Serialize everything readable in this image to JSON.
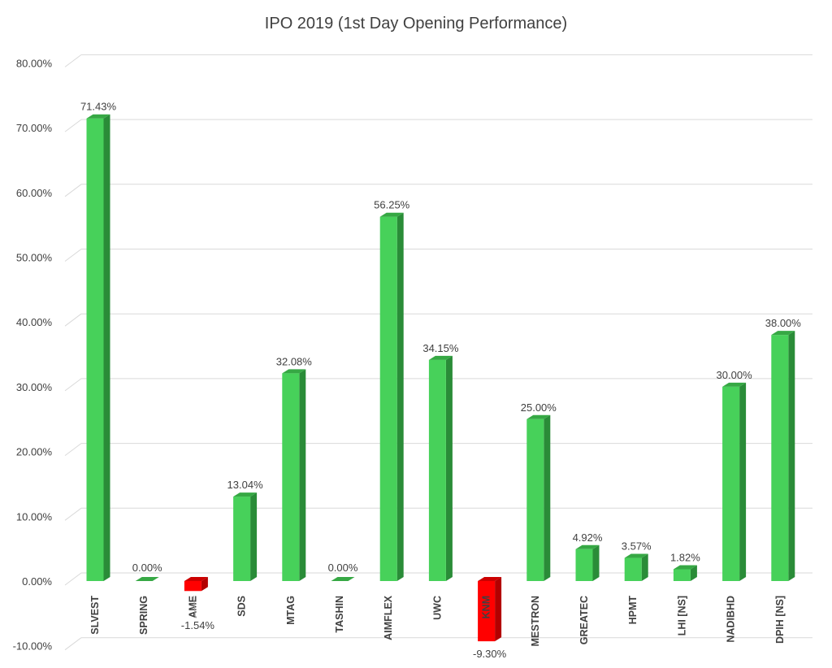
{
  "chart_data": {
    "type": "bar",
    "title": "IPO 2019 (1st Day Opening Performance)",
    "xlabel": "",
    "ylabel": "",
    "ylim": [
      -10,
      80
    ],
    "y_ticks": [
      "-10.00%",
      "0.00%",
      "10.00%",
      "20.00%",
      "30.00%",
      "40.00%",
      "50.00%",
      "60.00%",
      "70.00%",
      "80.00%"
    ],
    "categories": [
      "SLVEST",
      "SPRING",
      "AME",
      "SDS",
      "MTAG",
      "TASHIN",
      "AIMFLEX",
      "UWC",
      "KNM",
      "MESTRON",
      "GREATEC",
      "HPMT",
      "LHI [NS]",
      "NADIBHD",
      "DPIH [NS]"
    ],
    "values": [
      71.43,
      0.0,
      -1.54,
      13.04,
      32.08,
      0.0,
      56.25,
      34.15,
      -9.3,
      25.0,
      4.92,
      3.57,
      1.82,
      30.0,
      38.0
    ],
    "data_labels": [
      "71.43%",
      "0.00%",
      "-1.54%",
      "13.04%",
      "32.08%",
      "0.00%",
      "56.25%",
      "34.15%",
      "-9.30%",
      "25.00%",
      "4.92%",
      "3.57%",
      "1.82%",
      "30.00%",
      "38.00%"
    ],
    "grid": true,
    "legend": "none",
    "colors": {
      "positive_front": "#47d15a",
      "positive_side": "#2a8c38",
      "positive_top": "#36a844",
      "negative_front": "#ff0000",
      "negative_side": "#b30000",
      "negative_top": "#cc0000"
    }
  }
}
